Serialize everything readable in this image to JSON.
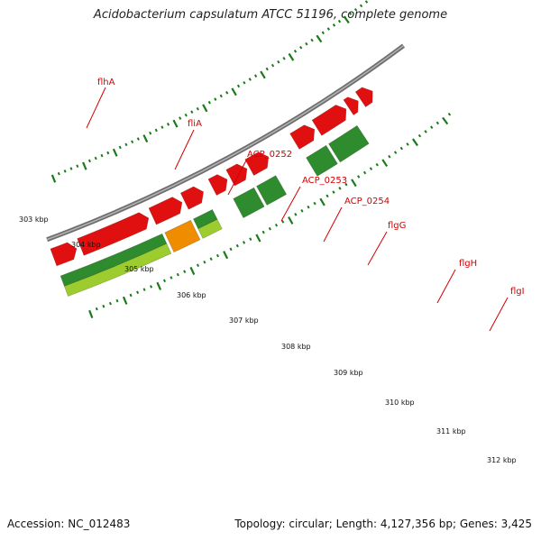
{
  "title": "Acidobacterium capsulatum ATCC 51196, complete genome",
  "footer": {
    "accession": "Accession: NC_012483",
    "summary": "Topology: circular; Length: 4,127,356 bp; Genes: 3,425"
  },
  "colors": {
    "forward_lightgreen": "#9ccc2e",
    "forward_green": "#2e8b2e",
    "orange": "#f08c00",
    "red": "#e01010",
    "backbone": "#8c8c8c",
    "tick": "#1a7a1a",
    "label": "#d40000"
  },
  "scale_labels": [
    "303 kbp",
    "304 kbp",
    "305 kbp",
    "306 kbp",
    "307 kbp",
    "308 kbp",
    "309 kbp",
    "310 kbp",
    "311 kbp",
    "312 kbp"
  ],
  "gene_labels": [
    "flhA",
    "fliA",
    "ACP_0252",
    "ACP_0253",
    "ACP_0254",
    "flgG",
    "flgH",
    "flgI"
  ]
}
